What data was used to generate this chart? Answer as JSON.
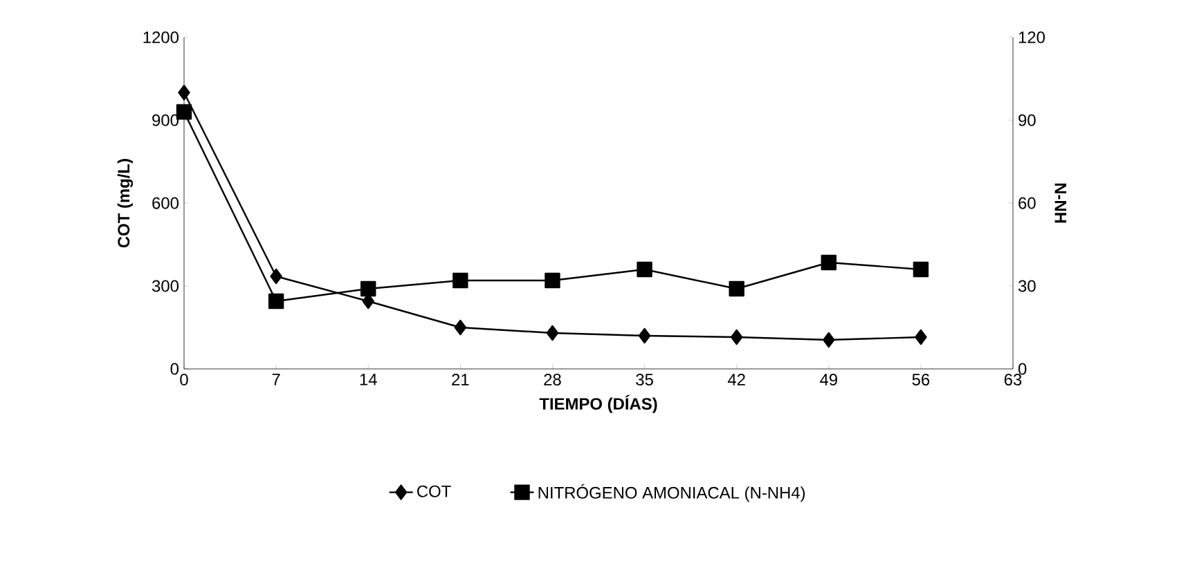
{
  "chart_data": {
    "type": "line",
    "x": [
      0,
      7,
      14,
      21,
      28,
      35,
      42,
      49,
      56
    ],
    "series": [
      {
        "name": "COT",
        "color": "#000000",
        "marker": "diamond",
        "values": [
          1000,
          335,
          245,
          150,
          130,
          120,
          115,
          105,
          115
        ]
      },
      {
        "name": "NITRÓGENO AMONIACAL (N-NH4)",
        "color": "#000000",
        "marker": "square",
        "axis": "y2",
        "values": [
          93,
          24.5,
          29,
          32,
          32,
          36,
          29,
          38.5,
          36
        ]
      }
    ],
    "xlabel": "TIEMPO (DÍAS)",
    "ylabel": "COT (mg/L)",
    "y2label": "N-NH",
    "xlim": [
      0,
      63
    ],
    "xticks": [
      0,
      7,
      14,
      21,
      28,
      35,
      42,
      49,
      56,
      63
    ],
    "ylim": [
      0,
      1200
    ],
    "yticks": [
      0,
      300,
      600,
      900,
      1200
    ],
    "y2lim": [
      0,
      120
    ],
    "y2ticks": [
      0,
      30,
      60,
      90,
      120
    ],
    "grid": false,
    "legend": "bottom",
    "line_style": "solid"
  }
}
